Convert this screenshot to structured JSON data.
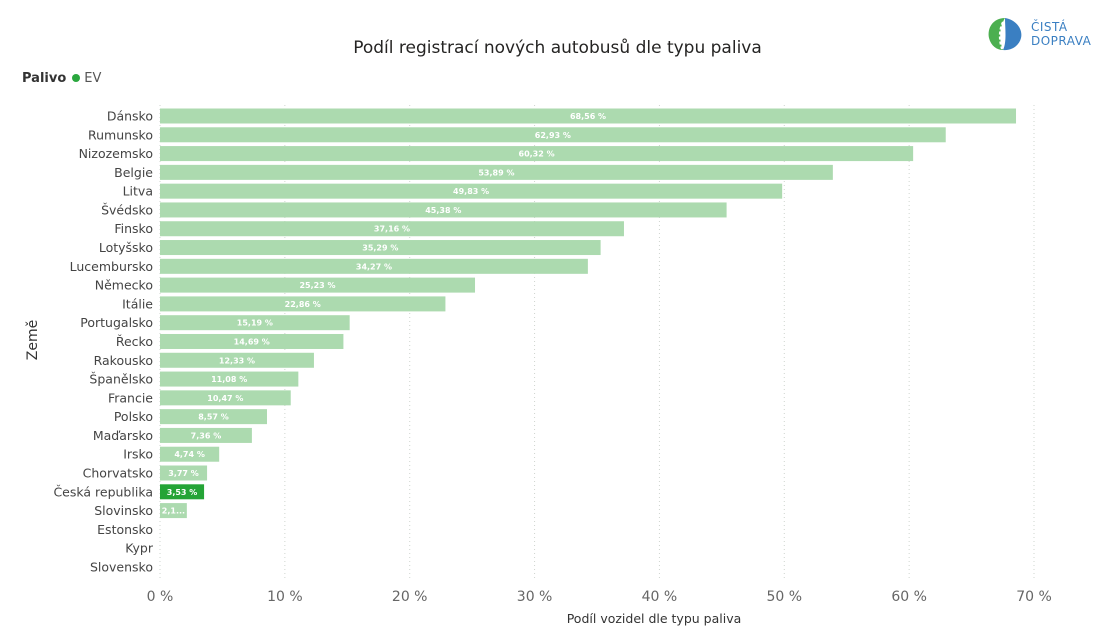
{
  "logo": {
    "line1": "ČISTÁ",
    "line2": "DOPRAVA"
  },
  "legend": {
    "title": "Palivo",
    "item": "EV",
    "color": "#2aa73e"
  },
  "colors": {
    "bar": "#acdaaf",
    "highlight": "#24a436",
    "grid": "#cfd4cf"
  },
  "chart_data": {
    "type": "bar",
    "orientation": "horizontal",
    "title": "Podíl registrací nových autobusů dle typu paliva",
    "xlabel": "Podíl vozidel dle typu paliva",
    "ylabel": "Země",
    "xlim": [
      0,
      70
    ],
    "xticks": [
      0,
      10,
      20,
      30,
      40,
      50,
      60,
      70
    ],
    "xtick_labels": [
      "0 %",
      "10 %",
      "20 %",
      "30 %",
      "40 %",
      "50 %",
      "60 %",
      "70 %"
    ],
    "highlight": "Česká republika",
    "categories": [
      "Dánsko",
      "Rumunsko",
      "Nizozemsko",
      "Belgie",
      "Litva",
      "Švédsko",
      "Finsko",
      "Lotyšsko",
      "Lucembursko",
      "Německo",
      "Itálie",
      "Portugalsko",
      "Řecko",
      "Rakousko",
      "Španělsko",
      "Francie",
      "Polsko",
      "Maďarsko",
      "Irsko",
      "Chorvatsko",
      "Česká republika",
      "Slovinsko",
      "Estonsko",
      "Kypr",
      "Slovensko"
    ],
    "values": [
      68.56,
      62.93,
      60.32,
      53.89,
      49.83,
      45.38,
      37.16,
      35.29,
      34.27,
      25.23,
      22.86,
      15.19,
      14.69,
      12.33,
      11.08,
      10.47,
      8.57,
      7.36,
      4.74,
      3.77,
      3.53,
      2.15,
      null,
      null,
      null
    ],
    "labels": [
      "68,56 %",
      "62,93 %",
      "60,32 %",
      "53,89 %",
      "49,83 %",
      "45,38 %",
      "37,16 %",
      "35,29 %",
      "34,27 %",
      "25,23 %",
      "22,86 %",
      "15,19 %",
      "14,69 %",
      "12,33 %",
      "11,08 %",
      "10,47 %",
      "8,57 %",
      "7,36 %",
      "4,74 %",
      "3,77 %",
      "3,53 %",
      "2,1...",
      "",
      "",
      ""
    ]
  }
}
